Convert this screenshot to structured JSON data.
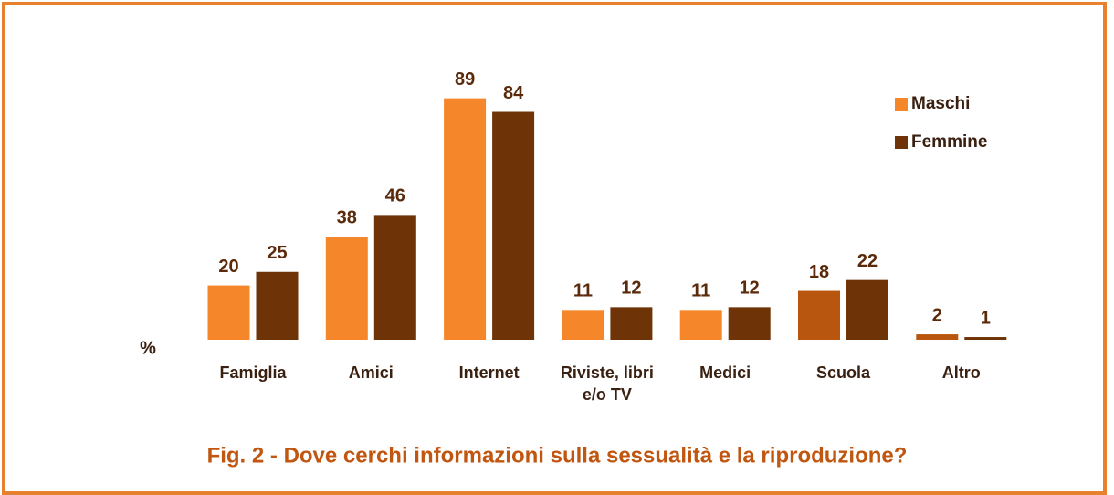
{
  "chart_data": {
    "type": "bar",
    "title": "Fig. 2 - Dove cerchi informazioni sulla sessualità e la riproduzione?",
    "y_label": "%",
    "categories": [
      "Famiglia",
      "Amici",
      "Internet",
      "Riviste, libri e/o TV",
      "Medici",
      "Scuola",
      "Altro"
    ],
    "series": [
      {
        "name": "Maschi",
        "color": "#f5862a",
        "colors": [
          "#f5862a",
          "#f5862a",
          "#f5862a",
          "#f5862a",
          "#f5862a",
          "#b8560f",
          "#b8560f"
        ],
        "values": [
          20,
          38,
          89,
          11,
          11,
          18,
          2
        ]
      },
      {
        "name": "Femmine",
        "color": "#6e3306",
        "values": [
          25,
          46,
          84,
          12,
          12,
          22,
          1
        ]
      }
    ],
    "ylim": [
      0,
      100
    ],
    "legend": "upper right"
  }
}
